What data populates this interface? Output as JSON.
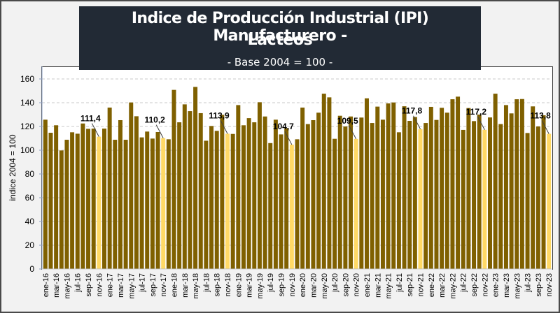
{
  "title": {
    "line1": "Indice de Producción Industrial (IPI) Manufacturero -",
    "line2": "Lácteos",
    "subtitle": "- Base 2004 = 100 -"
  },
  "colors": {
    "bar": "#7f6000",
    "highlight": "#ffd966",
    "title_bg": "#222a35",
    "grid": "#c8c8c8"
  },
  "chart_data": {
    "type": "bar",
    "title": "Indice de Producción Industrial (IPI) Manufacturero - Lácteos",
    "subtitle": "- Base 2004 = 100 -",
    "xlabel": "",
    "ylabel": "indice 2004 = 100",
    "ylim": [
      0,
      160
    ],
    "yticks": [
      0,
      20,
      40,
      60,
      80,
      100,
      120,
      140,
      160
    ],
    "grid": true,
    "legend": "none",
    "categories": [
      "ene-16",
      "feb-16",
      "mar-16",
      "abr-16",
      "may-16",
      "jun-16",
      "jul-16",
      "ago-16",
      "sep-16",
      "oct-16",
      "nov-16",
      "dic-16",
      "ene-17",
      "feb-17",
      "mar-17",
      "abr-17",
      "may-17",
      "jun-17",
      "jul-17",
      "ago-17",
      "sep-17",
      "oct-17",
      "nov-17",
      "dic-17",
      "ene-18",
      "feb-18",
      "mar-18",
      "abr-18",
      "may-18",
      "jun-18",
      "jul-18",
      "ago-18",
      "sep-18",
      "oct-18",
      "nov-18",
      "dic-18",
      "ene-19",
      "feb-19",
      "mar-19",
      "abr-19",
      "may-19",
      "jun-19",
      "jul-19",
      "ago-19",
      "sep-19",
      "oct-19",
      "nov-19",
      "dic-19",
      "ene-20",
      "feb-20",
      "mar-20",
      "abr-20",
      "may-20",
      "jun-20",
      "jul-20",
      "ago-20",
      "sep-20",
      "oct-20",
      "nov-20",
      "dic-20",
      "ene-21",
      "feb-21",
      "mar-21",
      "abr-21",
      "may-21",
      "jun-21",
      "jul-21",
      "ago-21",
      "sep-21",
      "oct-21",
      "nov-21",
      "dic-21",
      "ene-22",
      "feb-22",
      "mar-22",
      "abr-22",
      "may-22",
      "jun-22",
      "jul-22",
      "ago-22",
      "sep-22",
      "oct-22",
      "nov-22",
      "dic-22",
      "ene-23",
      "feb-23",
      "mar-23",
      "abr-23",
      "may-23",
      "jun-23",
      "jul-23",
      "ago-23",
      "sep-23",
      "oct-23",
      "nov-23"
    ],
    "values": [
      125.7,
      114.7,
      121.0,
      99.8,
      108.8,
      115.1,
      113.9,
      122.5,
      118.0,
      118.2,
      111.4,
      118.2,
      135.9,
      108.8,
      125.3,
      108.8,
      140.2,
      128.6,
      110.8,
      115.7,
      109.8,
      115.3,
      110.2,
      109.2,
      150.8,
      123.5,
      138.6,
      132.9,
      153.3,
      131.2,
      108.0,
      120.4,
      116.3,
      129.8,
      113.9,
      113.7,
      138.0,
      121.0,
      127.0,
      123.5,
      140.4,
      128.4,
      106.0,
      125.7,
      113.3,
      118.6,
      104.7,
      109.2,
      135.9,
      122.0,
      125.3,
      131.6,
      147.6,
      144.5,
      109.6,
      129.0,
      120.0,
      128.4,
      109.5,
      127.5,
      143.7,
      122.9,
      136.7,
      125.7,
      139.4,
      140.2,
      115.1,
      137.0,
      124.7,
      128.0,
      117.8,
      122.9,
      136.5,
      125.5,
      135.7,
      131.6,
      142.9,
      145.1,
      117.1,
      135.5,
      124.5,
      130.0,
      117.2,
      127.6,
      147.6,
      122.0,
      138.0,
      131.0,
      142.9,
      143.1,
      114.5,
      136.9,
      120.0,
      129.4,
      113.8
    ],
    "highlighted": [
      "nov-16",
      "nov-17",
      "nov-18",
      "nov-19",
      "nov-20",
      "nov-21",
      "nov-22",
      "nov-23"
    ],
    "annotations": [
      {
        "category": "nov-16",
        "label": "111,4"
      },
      {
        "category": "nov-17",
        "label": "110,2"
      },
      {
        "category": "nov-18",
        "label": "113,9"
      },
      {
        "category": "nov-19",
        "label": "104,7"
      },
      {
        "category": "nov-20",
        "label": "109,5"
      },
      {
        "category": "nov-21",
        "label": "117,8"
      },
      {
        "category": "nov-22",
        "label": "117,2"
      },
      {
        "category": "nov-23",
        "label": "113,8"
      }
    ],
    "xtick_step": 2
  }
}
